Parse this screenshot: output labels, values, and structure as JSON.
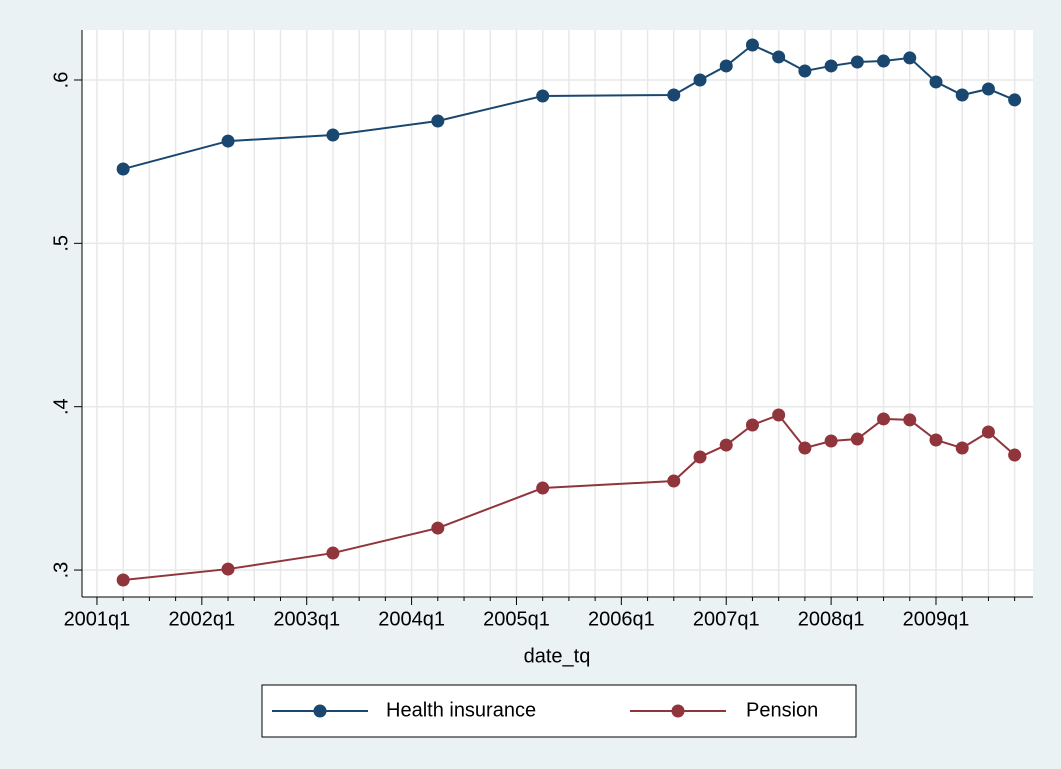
{
  "chart_data": {
    "type": "line",
    "x_label": "date_tq",
    "x": [
      165,
      169,
      173,
      177,
      181,
      186,
      187,
      188,
      189,
      190,
      191,
      192,
      193,
      194,
      195,
      196,
      197,
      198,
      199
    ],
    "series": [
      {
        "name": "Health insurance",
        "color": "#1a476f",
        "values": [
          0.5455,
          0.5626,
          0.5663,
          0.5749,
          0.5902,
          0.5908,
          0.6,
          0.6086,
          0.6214,
          0.6141,
          0.6055,
          0.6086,
          0.611,
          0.6116,
          0.6135,
          0.5988,
          0.5908,
          0.5945,
          0.5878
        ]
      },
      {
        "name": "Pension",
        "color": "#90353b",
        "values": [
          0.2939,
          0.3006,
          0.3104,
          0.3257,
          0.3502,
          0.3545,
          0.3692,
          0.3765,
          0.3888,
          0.3949,
          0.3747,
          0.379,
          0.3802,
          0.3925,
          0.3919,
          0.3796,
          0.3747,
          0.3845,
          0.3704
        ]
      }
    ],
    "xlim": [
      163.43,
      199.7
    ],
    "xticks": [
      {
        "value": 164,
        "label": "2001q1"
      },
      {
        "value": 168,
        "label": "2002q1"
      },
      {
        "value": 172,
        "label": "2003q1"
      },
      {
        "value": 176,
        "label": "2004q1"
      },
      {
        "value": 180,
        "label": "2005q1"
      },
      {
        "value": 184,
        "label": "2006q1"
      },
      {
        "value": 188,
        "label": "2007q1"
      },
      {
        "value": 192,
        "label": "2008q1"
      },
      {
        "value": 196,
        "label": "2009q1"
      }
    ],
    "xminorticks": [
      165,
      166,
      167,
      169,
      170,
      171,
      173,
      174,
      175,
      177,
      178,
      179,
      181,
      182,
      183,
      185,
      186,
      187,
      189,
      190,
      191,
      193,
      194,
      195,
      197,
      198,
      199
    ],
    "ylim": [
      0.2835,
      0.6306
    ],
    "yticks": [
      {
        "value": 0.3,
        "label": ".3"
      },
      {
        "value": 0.4,
        "label": ".4"
      },
      {
        "value": 0.5,
        "label": ".5"
      },
      {
        "value": 0.6,
        "label": ".6"
      }
    ],
    "grid": true,
    "legend": "bottom"
  }
}
